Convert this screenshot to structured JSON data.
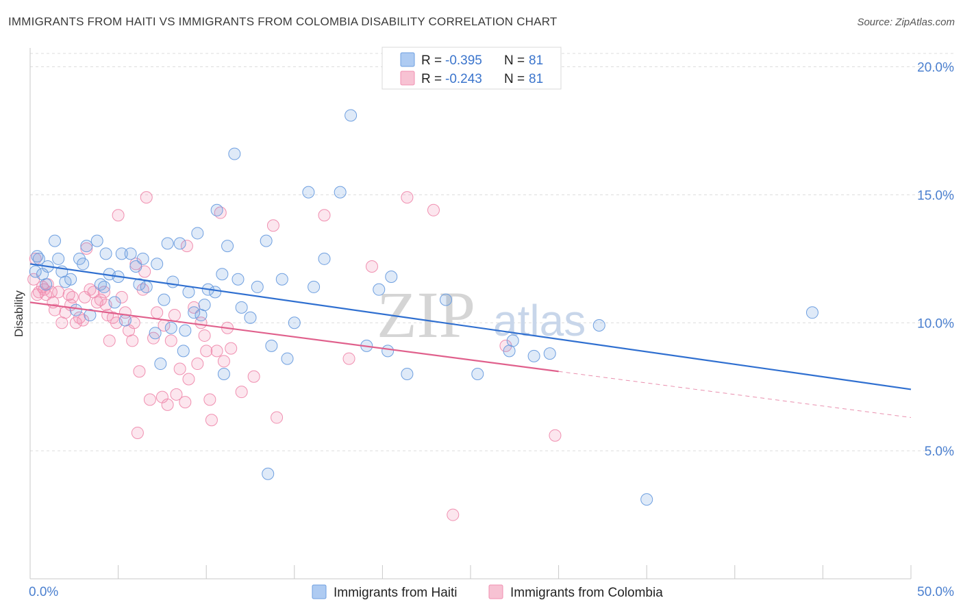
{
  "title": "IMMIGRANTS FROM HAITI VS IMMIGRANTS FROM COLOMBIA DISABILITY CORRELATION CHART",
  "source": "Source: ZipAtlas.com",
  "watermark": {
    "zip": "ZIP",
    "atlas": "atlas"
  },
  "colors": {
    "haiti": "#6e9fe0",
    "haiti_line": "#2f6fd0",
    "colombia": "#f08fb0",
    "colombia_line": "#e0608c",
    "tick": "#4a7fcf"
  },
  "legend": {
    "rows": [
      {
        "r_label": "R = ",
        "r_value": "-0.395",
        "n_label": "N = ",
        "n_value": "81"
      },
      {
        "r_label": "R = ",
        "r_value": "-0.243",
        "n_label": "N = ",
        "n_value": "81"
      }
    ]
  },
  "bottom_legend": {
    "haiti": "Immigrants from Haiti",
    "colombia": "Immigrants from Colombia"
  },
  "chart_data": {
    "type": "scatter",
    "title": "IMMIGRANTS FROM HAITI VS IMMIGRANTS FROM COLOMBIA DISABILITY CORRELATION CHART",
    "xlabel": "",
    "ylabel": "Disability",
    "xlim": [
      0,
      50
    ],
    "ylim": [
      0,
      21
    ],
    "x_tick_labels": [
      "0.0%",
      "50.0%"
    ],
    "y_ticks": [
      5,
      10,
      15,
      20
    ],
    "y_tick_labels": [
      "5.0%",
      "10.0%",
      "15.0%",
      "20.0%"
    ],
    "grid": true,
    "legend_position": "top-center",
    "series": [
      {
        "name": "Immigrants from Haiti",
        "points": [
          [
            0.3,
            12.0
          ],
          [
            0.4,
            12.6
          ],
          [
            0.5,
            12.5
          ],
          [
            0.7,
            11.9
          ],
          [
            0.9,
            11.5
          ],
          [
            1.0,
            12.2
          ],
          [
            1.4,
            13.2
          ],
          [
            1.6,
            12.5
          ],
          [
            1.8,
            12.0
          ],
          [
            2.0,
            11.6
          ],
          [
            2.3,
            11.7
          ],
          [
            2.6,
            10.5
          ],
          [
            2.8,
            12.5
          ],
          [
            3.0,
            12.3
          ],
          [
            3.2,
            13.0
          ],
          [
            3.4,
            10.3
          ],
          [
            3.8,
            13.2
          ],
          [
            4.0,
            11.5
          ],
          [
            4.2,
            11.4
          ],
          [
            4.3,
            12.7
          ],
          [
            4.5,
            11.9
          ],
          [
            4.8,
            10.8
          ],
          [
            5.0,
            11.8
          ],
          [
            5.2,
            12.7
          ],
          [
            5.4,
            10.1
          ],
          [
            5.7,
            12.7
          ],
          [
            6.0,
            12.2
          ],
          [
            6.2,
            11.5
          ],
          [
            6.4,
            12.5
          ],
          [
            6.6,
            11.4
          ],
          [
            7.1,
            9.6
          ],
          [
            7.2,
            12.3
          ],
          [
            7.4,
            8.4
          ],
          [
            7.6,
            10.9
          ],
          [
            7.8,
            13.1
          ],
          [
            8.0,
            9.8
          ],
          [
            8.1,
            11.6
          ],
          [
            8.5,
            13.1
          ],
          [
            8.7,
            8.9
          ],
          [
            8.8,
            9.7
          ],
          [
            9.0,
            11.2
          ],
          [
            9.3,
            10.4
          ],
          [
            9.5,
            13.5
          ],
          [
            9.7,
            10.3
          ],
          [
            9.9,
            10.7
          ],
          [
            10.1,
            11.3
          ],
          [
            10.5,
            11.2
          ],
          [
            10.6,
            14.4
          ],
          [
            10.9,
            11.9
          ],
          [
            11.0,
            8.0
          ],
          [
            11.2,
            13.0
          ],
          [
            11.6,
            16.6
          ],
          [
            11.8,
            11.7
          ],
          [
            12.0,
            10.6
          ],
          [
            12.5,
            10.2
          ],
          [
            12.9,
            11.4
          ],
          [
            13.4,
            13.2
          ],
          [
            13.5,
            4.1
          ],
          [
            13.7,
            9.1
          ],
          [
            14.3,
            11.7
          ],
          [
            14.6,
            8.6
          ],
          [
            15.0,
            10.0
          ],
          [
            15.8,
            15.1
          ],
          [
            16.1,
            11.4
          ],
          [
            16.7,
            12.5
          ],
          [
            17.6,
            15.1
          ],
          [
            18.2,
            18.1
          ],
          [
            19.1,
            9.1
          ],
          [
            19.8,
            11.3
          ],
          [
            20.3,
            8.9
          ],
          [
            20.5,
            11.8
          ],
          [
            21.4,
            8.0
          ],
          [
            23.6,
            10.9
          ],
          [
            25.4,
            8.0
          ],
          [
            27.2,
            8.9
          ],
          [
            27.4,
            9.3
          ],
          [
            28.6,
            8.7
          ],
          [
            29.5,
            8.8
          ],
          [
            32.3,
            9.9
          ],
          [
            35.0,
            3.1
          ],
          [
            44.4,
            10.4
          ]
        ]
      },
      {
        "name": "Immigrants from Colombia",
        "points": [
          [
            0.2,
            11.7
          ],
          [
            0.3,
            12.5
          ],
          [
            0.4,
            11.1
          ],
          [
            0.5,
            11.2
          ],
          [
            0.7,
            11.4
          ],
          [
            0.8,
            11.3
          ],
          [
            0.9,
            11.1
          ],
          [
            1.0,
            11.5
          ],
          [
            1.2,
            11.2
          ],
          [
            1.3,
            10.8
          ],
          [
            1.4,
            10.5
          ],
          [
            1.6,
            11.2
          ],
          [
            1.8,
            10.0
          ],
          [
            2.0,
            10.4
          ],
          [
            2.2,
            11.1
          ],
          [
            2.3,
            10.7
          ],
          [
            2.4,
            11.0
          ],
          [
            2.6,
            10.0
          ],
          [
            2.8,
            10.2
          ],
          [
            3.0,
            10.1
          ],
          [
            3.1,
            11.0
          ],
          [
            3.2,
            12.9
          ],
          [
            3.4,
            11.3
          ],
          [
            3.6,
            11.2
          ],
          [
            3.8,
            10.8
          ],
          [
            4.0,
            10.9
          ],
          [
            4.2,
            11.2
          ],
          [
            4.3,
            10.7
          ],
          [
            4.4,
            10.3
          ],
          [
            4.5,
            9.3
          ],
          [
            4.7,
            10.2
          ],
          [
            4.9,
            10.0
          ],
          [
            5.0,
            14.2
          ],
          [
            5.2,
            11.0
          ],
          [
            5.4,
            10.4
          ],
          [
            5.6,
            9.7
          ],
          [
            5.8,
            9.3
          ],
          [
            5.9,
            10.0
          ],
          [
            6.0,
            12.3
          ],
          [
            6.1,
            5.7
          ],
          [
            6.2,
            8.1
          ],
          [
            6.4,
            11.3
          ],
          [
            6.5,
            12.0
          ],
          [
            6.6,
            14.9
          ],
          [
            6.8,
            7.0
          ],
          [
            7.0,
            9.4
          ],
          [
            7.2,
            10.4
          ],
          [
            7.5,
            7.1
          ],
          [
            7.6,
            9.9
          ],
          [
            7.8,
            6.8
          ],
          [
            8.0,
            9.3
          ],
          [
            8.2,
            10.3
          ],
          [
            8.3,
            7.2
          ],
          [
            8.5,
            8.2
          ],
          [
            8.8,
            6.9
          ],
          [
            8.9,
            13.0
          ],
          [
            9.0,
            7.8
          ],
          [
            9.3,
            10.6
          ],
          [
            9.5,
            8.4
          ],
          [
            9.7,
            10.0
          ],
          [
            9.9,
            9.5
          ],
          [
            10.0,
            8.9
          ],
          [
            10.2,
            7.0
          ],
          [
            10.3,
            6.2
          ],
          [
            10.6,
            8.9
          ],
          [
            10.8,
            14.3
          ],
          [
            11.0,
            8.5
          ],
          [
            11.2,
            9.8
          ],
          [
            11.4,
            9.0
          ],
          [
            12.0,
            7.3
          ],
          [
            12.7,
            7.9
          ],
          [
            13.8,
            13.8
          ],
          [
            14.0,
            6.3
          ],
          [
            16.7,
            14.2
          ],
          [
            18.1,
            8.6
          ],
          [
            19.4,
            12.2
          ],
          [
            21.4,
            14.9
          ],
          [
            22.9,
            14.4
          ],
          [
            24.0,
            2.5
          ],
          [
            27.0,
            9.1
          ],
          [
            29.8,
            5.6
          ]
        ]
      }
    ],
    "trend_lines": [
      {
        "series": "Immigrants from Haiti",
        "x": [
          0,
          50
        ],
        "y": [
          12.3,
          7.4
        ]
      },
      {
        "series": "Immigrants from Colombia",
        "x": [
          0,
          30
        ],
        "y": [
          10.8,
          8.1
        ],
        "dashed_to": [
          50,
          6.3
        ]
      }
    ]
  }
}
